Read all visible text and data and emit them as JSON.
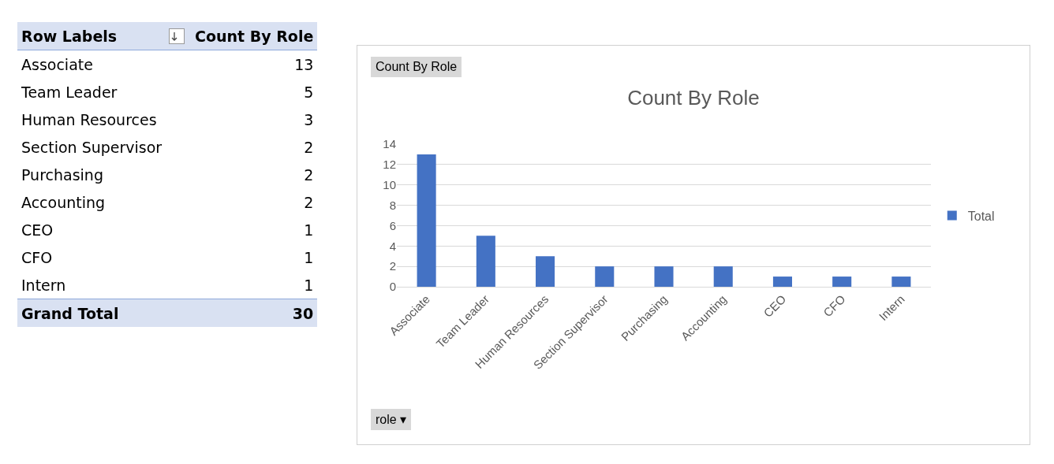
{
  "chart_data": [
    {
      "type": "other",
      "categories": [
        "Associate",
        "Team Leader",
        "Human Resources",
        "Section Supervisor",
        "Purchasing",
        "Accounting",
        "CEO",
        "CFO",
        "Intern"
      ],
      "values": [
        13,
        5,
        3,
        2,
        2,
        2,
        1,
        1,
        1
      ],
      "data_labels": true,
      "annotations": [
        "Row Labels",
        "Count By Role",
        "Grand Total",
        "30"
      ]
    },
    {
      "type": "bar",
      "title": "Count By Role",
      "categories": [
        "Associate",
        "Team Leader",
        "Human Resources",
        "Section Supervisor",
        "Purchasing",
        "Accounting",
        "CEO",
        "CFO",
        "Intern"
      ],
      "series": [
        {
          "name": "Total",
          "color": "#4472c4",
          "values": [
            13,
            5,
            3,
            2,
            2,
            2,
            1,
            1,
            1
          ]
        }
      ],
      "ylim": [
        0,
        14
      ],
      "yticks": [
        0,
        2,
        4,
        6,
        8,
        10,
        12,
        14
      ],
      "grid": "y",
      "legend": "right",
      "annotations": [
        "Count By Role",
        "role ▾"
      ]
    }
  ]
}
